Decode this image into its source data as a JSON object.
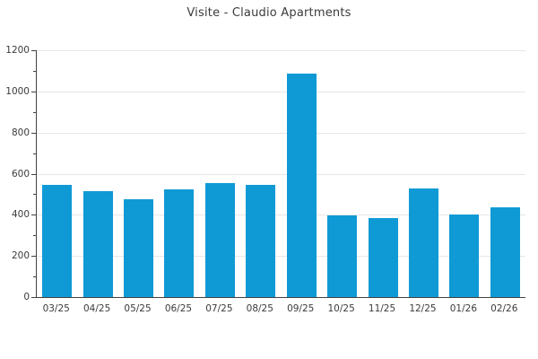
{
  "chart_data": {
    "type": "bar",
    "title": "Visite - Claudio Apartments",
    "categories": [
      "03/25",
      "04/25",
      "05/25",
      "06/25",
      "07/25",
      "08/25",
      "09/25",
      "10/25",
      "11/25",
      "12/25",
      "01/26",
      "02/26"
    ],
    "values": [
      545,
      515,
      475,
      525,
      555,
      545,
      1085,
      395,
      385,
      530,
      400,
      435
    ],
    "xlabel": "",
    "ylabel": "",
    "ylim": [
      0,
      1200
    ],
    "ytick_interval": 200,
    "minor_tick_interval": 100,
    "ytick_labels": [
      "0",
      "200",
      "400",
      "600",
      "800",
      "1000",
      "1200"
    ],
    "grid": true,
    "legend": "none",
    "colors": {
      "bar": "#0f9ad5",
      "grid": "#e6e6e6",
      "axis": "#424242",
      "text": "#3b3b3b"
    }
  }
}
